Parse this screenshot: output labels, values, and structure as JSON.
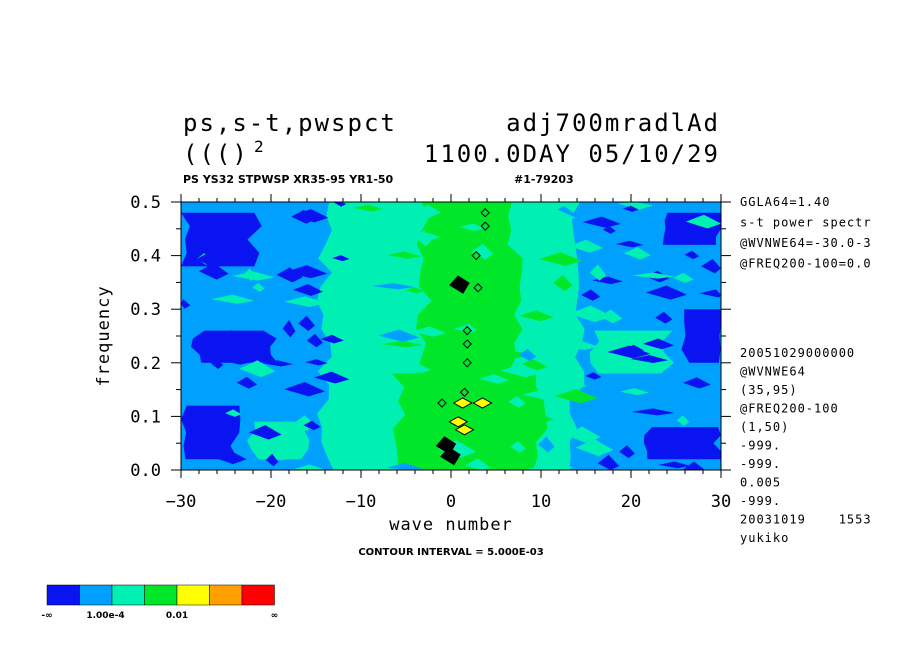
{
  "header": {
    "title_left_line1": "ps,s-t,pwspct",
    "title_right_line1": "adj700mradlAd",
    "title_left_line2": "((()",
    "title_sup": "2",
    "title_right_line2": "1100.0DAY 05/10/29",
    "subtitle_left": "PS YS32 STPWSP XR35-95 YR1-50",
    "subtitle_right": "#1-79203"
  },
  "side_panel": {
    "top": [
      "GGLA64=1.40",
      "s-t power spectr",
      "@WVNWE64=-30.0-3",
      "@FREQ200-100=0.0"
    ],
    "bottom": [
      "20051029000000",
      "@WVNWE64",
      "(35,95)",
      "@FREQ200-100",
      "(1,50)",
      "-999.",
      "-999.",
      "0.005",
      "-999.",
      "20031019    1553",
      "yukiko"
    ]
  },
  "footer": {
    "contour_interval": "CONTOUR INTERVAL = 5.000E-03"
  },
  "colorbar": {
    "colors": [
      "#0a14f0",
      "#00a0ff",
      "#00f0b4",
      "#00e628",
      "#ffff00",
      "#ffa000",
      "#ff0000"
    ],
    "labels": [
      "-∞",
      "1.00e-4",
      "0.01",
      "∞"
    ]
  },
  "chart_data": {
    "type": "heatmap",
    "xlabel": "wave number",
    "ylabel": "frequency",
    "xlim": [
      -30,
      30
    ],
    "ylim": [
      0.0,
      0.5
    ],
    "x_ticks": [
      -30,
      -20,
      -10,
      0,
      10,
      20,
      30
    ],
    "x_tick_labels": [
      "−30",
      "−20",
      "−10",
      "0",
      "10",
      "20",
      "30"
    ],
    "y_ticks": [
      0.0,
      0.1,
      0.2,
      0.3,
      0.4,
      0.5
    ],
    "y_tick_labels": [
      "0.0",
      "0.1",
      "0.2",
      "0.3",
      "0.4",
      "0.5"
    ],
    "level_colors": [
      "#0a14f0",
      "#00a0ff",
      "#00f0b4",
      "#00e628",
      "#ffff00",
      "#ffa000",
      "#ff0000"
    ],
    "background_level": 1,
    "regions": [
      {
        "level": 2,
        "x": [
          -14,
          14
        ],
        "y": [
          0.0,
          0.5
        ]
      },
      {
        "level": 2,
        "x": [
          -22,
          -16
        ],
        "y": [
          0.02,
          0.09
        ]
      },
      {
        "level": 2,
        "x": [
          16,
          24
        ],
        "y": [
          0.18,
          0.26
        ]
      },
      {
        "level": 3,
        "x": [
          -3,
          7
        ],
        "y": [
          0.0,
          0.5
        ]
      },
      {
        "level": 3,
        "x": [
          -6,
          10
        ],
        "y": [
          0.0,
          0.18
        ]
      },
      {
        "level": 0,
        "x": [
          -30,
          -22
        ],
        "y": [
          0.38,
          0.48
        ]
      },
      {
        "level": 0,
        "x": [
          -30,
          -24
        ],
        "y": [
          0.02,
          0.12
        ]
      },
      {
        "level": 0,
        "x": [
          -28,
          -20
        ],
        "y": [
          0.2,
          0.26
        ]
      },
      {
        "level": 0,
        "x": [
          22,
          30
        ],
        "y": [
          0.02,
          0.08
        ]
      },
      {
        "level": 0,
        "x": [
          24,
          30
        ],
        "y": [
          0.42,
          0.48
        ]
      },
      {
        "level": 0,
        "x": [
          26,
          30
        ],
        "y": [
          0.2,
          0.3
        ]
      }
    ],
    "features": [
      {
        "x": 0.0,
        "y": 0.025,
        "kind": "black"
      },
      {
        "x": -0.5,
        "y": 0.045,
        "kind": "black"
      },
      {
        "x": 1.5,
        "y": 0.075,
        "kind": "yellow"
      },
      {
        "x": 0.8,
        "y": 0.09,
        "kind": "yellow"
      },
      {
        "x": 3.5,
        "y": 0.125,
        "kind": "yellow"
      },
      {
        "x": 1.3,
        "y": 0.125,
        "kind": "yellow"
      },
      {
        "x": 1.0,
        "y": 0.345,
        "kind": "black"
      },
      {
        "x": 3.0,
        "y": 0.34,
        "kind": "line"
      },
      {
        "x": 2.8,
        "y": 0.4,
        "kind": "line"
      },
      {
        "x": 1.8,
        "y": 0.26,
        "kind": "line"
      },
      {
        "x": 1.8,
        "y": 0.235,
        "kind": "line"
      },
      {
        "x": 1.8,
        "y": 0.2,
        "kind": "line"
      },
      {
        "x": 1.5,
        "y": 0.145,
        "kind": "line"
      },
      {
        "x": -1.0,
        "y": 0.125,
        "kind": "line"
      },
      {
        "x": 3.8,
        "y": 0.48,
        "kind": "line"
      },
      {
        "x": 3.8,
        "y": 0.455,
        "kind": "line"
      }
    ]
  }
}
